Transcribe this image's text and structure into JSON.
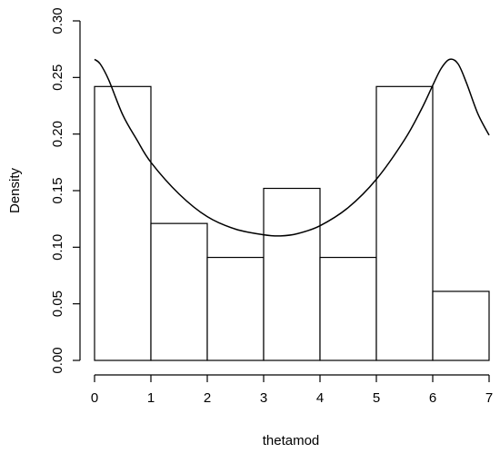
{
  "chart_data": {
    "type": "bar",
    "subtype": "histogram",
    "title": "",
    "xlabel": "thetamod",
    "ylabel": "Density",
    "xlim": [
      0,
      7
    ],
    "ylim": [
      0,
      0.3
    ],
    "x_ticks": [
      "0",
      "1",
      "2",
      "3",
      "4",
      "5",
      "6",
      "7"
    ],
    "y_ticks": [
      "0.00",
      "0.05",
      "0.10",
      "0.15",
      "0.20",
      "0.25",
      "0.30"
    ],
    "bins": [
      {
        "from": 0,
        "to": 1,
        "density": 0.242
      },
      {
        "from": 1,
        "to": 2,
        "density": 0.121
      },
      {
        "from": 2,
        "to": 3,
        "density": 0.091
      },
      {
        "from": 3,
        "to": 4,
        "density": 0.152
      },
      {
        "from": 4,
        "to": 5,
        "density": 0.091
      },
      {
        "from": 5,
        "to": 6,
        "density": 0.242
      },
      {
        "from": 6,
        "to": 7,
        "density": 0.061
      }
    ],
    "density_curve": {
      "x": [
        0.0,
        0.1,
        0.25,
        0.5,
        0.75,
        1.0,
        1.5,
        2.0,
        2.5,
        3.0,
        3.3,
        3.6,
        4.0,
        4.5,
        5.0,
        5.5,
        5.8,
        6.0,
        6.15,
        6.3,
        6.45,
        6.6,
        6.8,
        7.0
      ],
      "y": [
        0.266,
        0.262,
        0.248,
        0.217,
        0.195,
        0.175,
        0.147,
        0.127,
        0.116,
        0.111,
        0.11,
        0.112,
        0.119,
        0.135,
        0.16,
        0.195,
        0.222,
        0.243,
        0.258,
        0.266,
        0.262,
        0.245,
        0.218,
        0.199
      ]
    },
    "grid": false,
    "legend": "none",
    "colors": {
      "bar_fill": "#ffffff",
      "stroke": "#000000"
    }
  }
}
